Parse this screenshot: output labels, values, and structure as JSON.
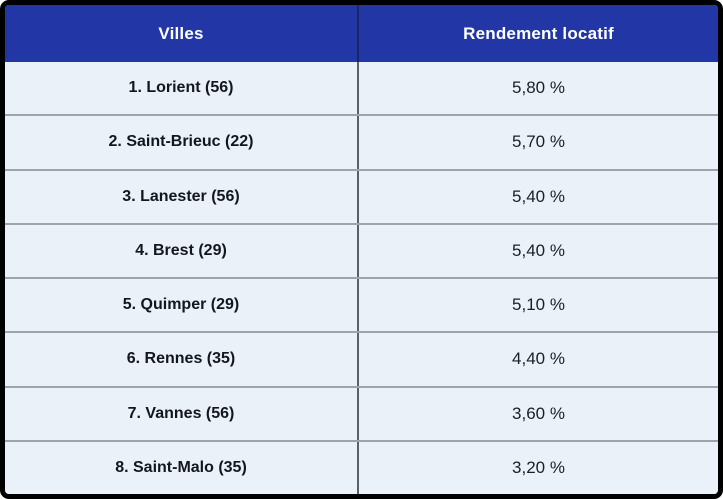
{
  "chart_data": {
    "type": "table",
    "columns": [
      "Villes",
      "Rendement locatif"
    ],
    "rows": [
      [
        "1. Lorient (56)",
        "5,80 %"
      ],
      [
        "2. Saint-Brieuc (22)",
        "5,70 %"
      ],
      [
        "3. Lanester (56)",
        "5,40 %"
      ],
      [
        "4. Brest (29)",
        "5,40 %"
      ],
      [
        "5. Quimper (29)",
        "5,10 %"
      ],
      [
        "6. Rennes (35)",
        "4,40 %"
      ],
      [
        "7. Vannes (56)",
        "3,60 %"
      ],
      [
        "8. Saint-Malo (35)",
        "3,20 %"
      ]
    ],
    "yields_numeric_percent": [
      5.8,
      5.7,
      5.4,
      5.4,
      5.1,
      4.4,
      3.6,
      3.2
    ]
  },
  "table": {
    "header": {
      "villes": "Villes",
      "rendement": "Rendement locatif"
    },
    "rows": [
      {
        "city": "1. Lorient (56)",
        "yield": "5,80 %"
      },
      {
        "city": "2. Saint-Brieuc (22)",
        "yield": "5,70 %"
      },
      {
        "city": "3. Lanester (56)",
        "yield": "5,40 %"
      },
      {
        "city": "4. Brest (29)",
        "yield": "5,40 %"
      },
      {
        "city": "5. Quimper (29)",
        "yield": "5,10 %"
      },
      {
        "city": "6. Rennes (35)",
        "yield": "4,40 %"
      },
      {
        "city": "7. Vannes (56)",
        "yield": "3,60 %"
      },
      {
        "city": "8. Saint-Malo (35)",
        "yield": "3,20 %"
      }
    ],
    "colors": {
      "header_bg": "#2236A5",
      "header_text": "#FFFFFF",
      "row_bg": "#EAF1F9",
      "row_text": "#14161F",
      "outer_border": "#000000",
      "row_divider": "#9CA5AD",
      "column_divider": "#5A6268",
      "column_divider_header": "#1A2765"
    }
  }
}
